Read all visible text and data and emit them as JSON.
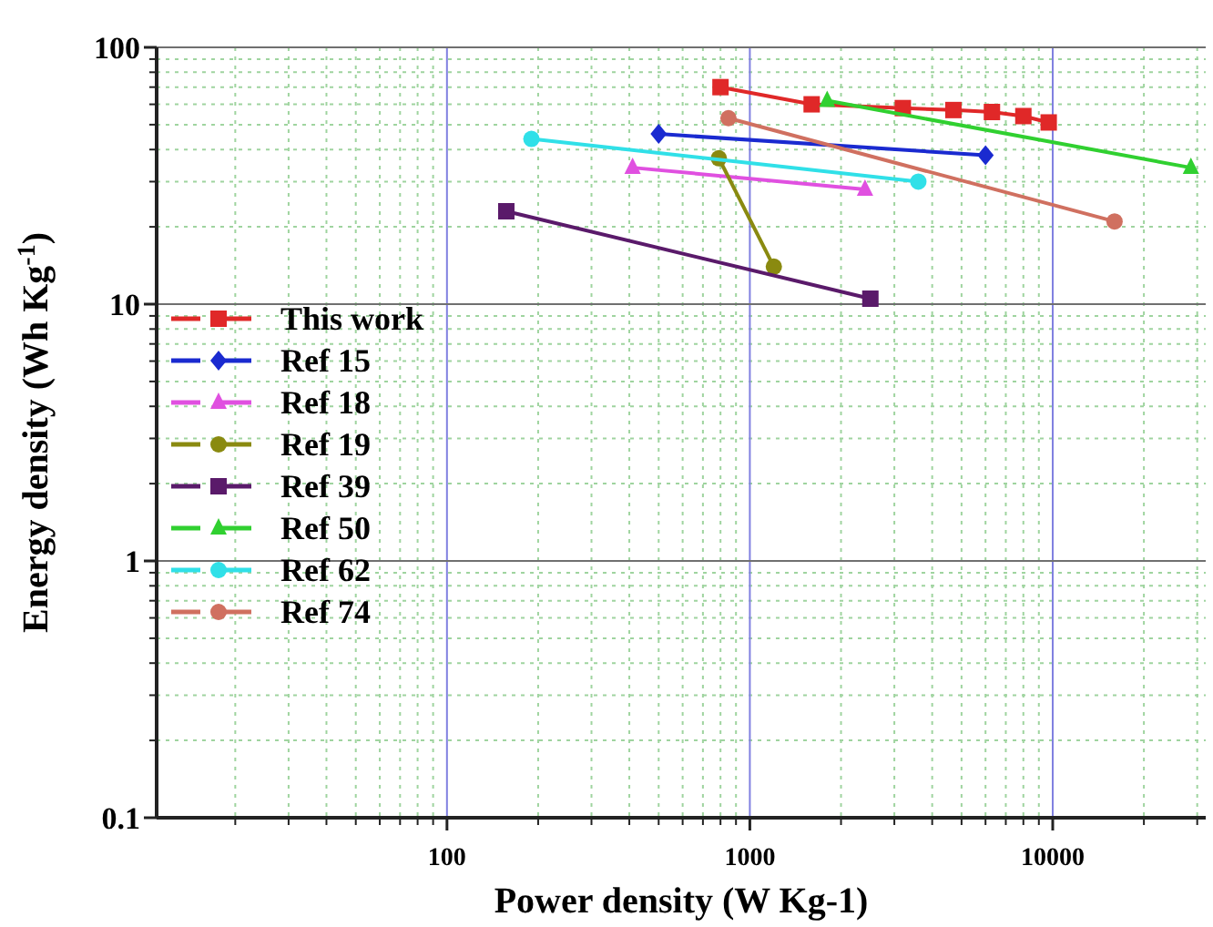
{
  "chart_data": {
    "type": "line",
    "xlabel": "Power density (W Kg-1)",
    "ylabel": "Energy density (Wh Kg$^{-1}$)",
    "log": "xy",
    "xlim": [
      11,
      32000
    ],
    "ylim": [
      0.1,
      100
    ],
    "xticks": [
      {
        "value": 20,
        "label": null
      },
      {
        "value": 30,
        "label": null
      },
      {
        "value": 40,
        "label": null
      },
      {
        "value": 50,
        "label": null
      },
      {
        "value": 60,
        "label": null
      },
      {
        "value": 70,
        "label": null
      },
      {
        "value": 80,
        "label": null
      },
      {
        "value": 90,
        "label": null
      },
      100,
      {
        "value": 200,
        "label": null
      },
      {
        "value": 300,
        "label": null
      },
      {
        "value": 400,
        "label": null
      },
      {
        "value": 500,
        "label": null
      },
      {
        "value": 600,
        "label": null
      },
      {
        "value": 700,
        "label": null
      },
      {
        "value": 800,
        "label": null
      },
      {
        "value": 900,
        "label": null
      },
      1000,
      {
        "value": 2000,
        "label": null
      },
      {
        "value": 3000,
        "label": null
      },
      {
        "value": 4000,
        "label": null
      },
      {
        "value": 5000,
        "label": null
      },
      {
        "value": 6000,
        "label": null
      },
      {
        "value": 7000,
        "label": null
      },
      {
        "value": 8000,
        "label": null
      },
      {
        "value": 9000,
        "label": null
      },
      10000,
      {
        "value": 20000,
        "label": null
      },
      {
        "value": 30000,
        "label": null
      }
    ],
    "yticks": [
      0.1,
      {
        "value": 0.2,
        "label": null
      },
      {
        "value": 0.3,
        "label": null
      },
      {
        "value": 0.4,
        "label": null
      },
      {
        "value": 0.5,
        "label": null
      },
      {
        "value": 0.6,
        "label": null
      },
      {
        "value": 0.7,
        "label": null
      },
      {
        "value": 0.8,
        "label": null
      },
      {
        "value": 0.9,
        "label": null
      },
      1,
      {
        "value": 2,
        "label": null
      },
      {
        "value": 3,
        "label": null
      },
      {
        "value": 4,
        "label": null
      },
      {
        "value": 5,
        "label": null
      },
      {
        "value": 6,
        "label": null
      },
      {
        "value": 7,
        "label": null
      },
      {
        "value": 8,
        "label": null
      },
      {
        "value": 9,
        "label": null
      },
      10,
      {
        "value": 20,
        "label": null
      },
      {
        "value": 30,
        "label": null
      },
      {
        "value": 40,
        "label": null
      },
      {
        "value": 50,
        "label": null
      },
      {
        "value": 60,
        "label": null
      },
      {
        "value": 70,
        "label": null
      },
      {
        "value": 80,
        "label": null
      },
      {
        "value": 90,
        "label": null
      },
      100
    ],
    "grid": true,
    "legend": "left",
    "line_style": "solid",
    "series": [
      {
        "name": "This work",
        "color": "#e02828",
        "marker": "square",
        "x": [
          800,
          1600,
          3200,
          4700,
          6300,
          8000,
          9700
        ],
        "values": [
          70,
          60,
          58,
          57,
          56,
          54,
          51
        ]
      },
      {
        "name": "Ref 15",
        "color": "#1a2ad0",
        "marker": "diamond",
        "x": [
          500,
          6000
        ],
        "values": [
          46,
          38
        ]
      },
      {
        "name": "Ref 18",
        "color": "#e050e0",
        "marker": "triangle",
        "x": [
          410,
          2400
        ],
        "values": [
          34,
          28
        ]
      },
      {
        "name": "Ref 19",
        "color": "#8a8a10",
        "marker": "circle",
        "x": [
          790,
          1200
        ],
        "values": [
          37,
          14
        ]
      },
      {
        "name": "Ref 39",
        "color": "#5a1a6a",
        "marker": "square",
        "x": [
          157,
          2500
        ],
        "values": [
          23,
          10.5
        ]
      },
      {
        "name": "Ref 50",
        "color": "#30d030",
        "marker": "triangle",
        "x": [
          1800,
          28600
        ],
        "values": [
          62,
          34
        ]
      },
      {
        "name": "Ref 62",
        "color": "#30e0e8",
        "marker": "circle",
        "x": [
          190,
          3600
        ],
        "values": [
          44,
          30
        ]
      },
      {
        "name": "Ref 74",
        "color": "#d07060",
        "marker": "circle",
        "x": [
          850,
          16000
        ],
        "values": [
          53,
          21
        ]
      }
    ]
  }
}
